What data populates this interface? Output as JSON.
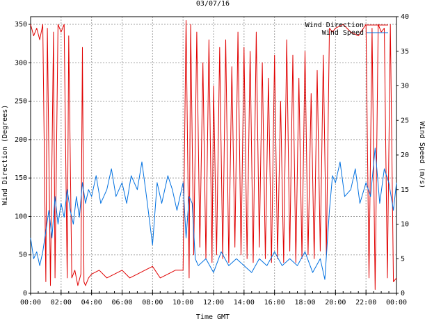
{
  "chart_data": {
    "type": "line",
    "title": "03/07/16",
    "xlabel": "Time GMT",
    "ylabel_left": "Wind Direction (Degrees)",
    "ylabel_right": "Wind Speed (m/s)",
    "x_ticks": [
      "00:00",
      "02:00",
      "04:00",
      "06:00",
      "08:00",
      "10:00",
      "12:00",
      "14:00",
      "16:00",
      "18:00",
      "20:00",
      "22:00",
      "00:00"
    ],
    "x_range_hours": [
      0,
      24
    ],
    "y_left_range": [
      0,
      360
    ],
    "y_left_ticks": [
      0,
      50,
      100,
      150,
      200,
      250,
      300,
      350
    ],
    "y_right_range": [
      0,
      40
    ],
    "y_right_ticks": [
      0,
      5,
      10,
      15,
      20,
      25,
      30,
      35,
      40
    ],
    "grid": true,
    "legend_position": "top-right",
    "colors": {
      "direction": "#e00000",
      "speed": "#0070e0",
      "grid": "#a0a0a0"
    },
    "series": [
      {
        "name": "Wind Direction",
        "axis": "left",
        "x": [
          0.0,
          0.2,
          0.4,
          0.6,
          0.8,
          1.0,
          1.1,
          1.3,
          1.5,
          1.6,
          1.8,
          2.0,
          2.2,
          2.4,
          2.5,
          2.7,
          2.9,
          3.1,
          3.3,
          3.4,
          3.5,
          3.6,
          3.8,
          4.0,
          4.5,
          5.0,
          5.5,
          6.0,
          6.5,
          7.0,
          7.5,
          8.0,
          8.5,
          9.0,
          9.5,
          10.0,
          10.2,
          10.4,
          10.5,
          10.7,
          10.9,
          11.1,
          11.3,
          11.5,
          11.7,
          11.9,
          12.0,
          12.2,
          12.4,
          12.6,
          12.8,
          13.0,
          13.2,
          13.4,
          13.6,
          13.8,
          14.0,
          14.2,
          14.4,
          14.6,
          14.8,
          15.0,
          15.2,
          15.4,
          15.6,
          15.8,
          16.0,
          16.2,
          16.4,
          16.6,
          16.8,
          17.0,
          17.2,
          17.4,
          17.6,
          17.8,
          18.0,
          18.2,
          18.4,
          18.6,
          18.8,
          19.0,
          19.2,
          19.4,
          19.6,
          19.8,
          20.0,
          20.5,
          21.0,
          21.5,
          22.0,
          22.2,
          22.4,
          22.6,
          22.8,
          23.0,
          23.2,
          23.4,
          23.6,
          23.8,
          24.0
        ],
        "values": [
          350,
          335,
          345,
          330,
          350,
          15,
          345,
          10,
          340,
          20,
          350,
          340,
          350,
          20,
          335,
          20,
          30,
          10,
          25,
          320,
          15,
          10,
          20,
          25,
          30,
          20,
          25,
          30,
          20,
          25,
          30,
          35,
          20,
          25,
          30,
          30,
          355,
          20,
          350,
          50,
          340,
          60,
          300,
          45,
          330,
          40,
          270,
          50,
          320,
          45,
          330,
          40,
          295,
          60,
          340,
          50,
          320,
          45,
          315,
          40,
          340,
          60,
          300,
          45,
          280,
          40,
          310,
          45,
          250,
          40,
          330,
          55,
          310,
          40,
          280,
          45,
          315,
          50,
          260,
          45,
          290,
          55,
          310,
          50,
          345,
          340,
          345,
          350,
          340,
          335,
          350,
          20,
          345,
          5,
          350,
          340,
          345,
          20,
          350,
          15,
          20
        ]
      },
      {
        "name": "Wind Speed",
        "axis": "right",
        "x": [
          0.0,
          0.2,
          0.4,
          0.6,
          0.8,
          1.0,
          1.2,
          1.4,
          1.6,
          1.8,
          2.0,
          2.2,
          2.4,
          2.6,
          2.8,
          3.0,
          3.2,
          3.4,
          3.6,
          3.8,
          4.0,
          4.3,
          4.6,
          5.0,
          5.3,
          5.6,
          6.0,
          6.3,
          6.6,
          7.0,
          7.3,
          7.6,
          8.0,
          8.3,
          8.6,
          9.0,
          9.3,
          9.6,
          10.0,
          10.2,
          10.4,
          10.6,
          10.8,
          11.0,
          11.5,
          12.0,
          12.5,
          13.0,
          13.5,
          14.0,
          14.5,
          15.0,
          15.5,
          16.0,
          16.5,
          17.0,
          17.5,
          18.0,
          18.5,
          19.0,
          19.3,
          19.6,
          19.8,
          20.0,
          20.3,
          20.6,
          21.0,
          21.3,
          21.6,
          22.0,
          22.3,
          22.6,
          22.9,
          23.2,
          23.5,
          23.8,
          24.0
        ],
        "values": [
          8,
          5,
          6,
          4,
          6,
          9,
          12,
          8,
          14,
          10,
          13,
          11,
          15,
          12,
          10,
          14,
          11,
          16,
          13,
          15,
          14,
          17,
          13,
          15,
          18,
          14,
          16,
          13,
          17,
          15,
          19,
          14,
          7,
          16,
          13,
          17,
          15,
          12,
          16,
          8,
          14,
          13,
          5,
          4,
          5,
          3,
          6,
          4,
          5,
          4,
          3,
          5,
          4,
          6,
          4,
          5,
          4,
          6,
          3,
          5,
          2,
          12,
          17,
          16,
          19,
          14,
          15,
          18,
          13,
          16,
          14,
          21,
          13,
          18,
          16,
          12,
          16
        ]
      }
    ]
  }
}
